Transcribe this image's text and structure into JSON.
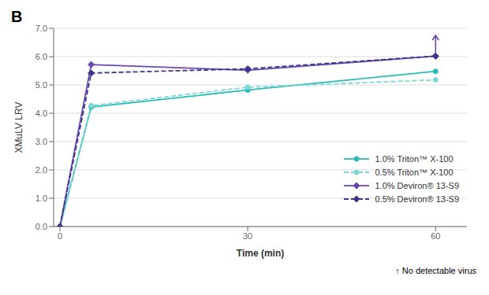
{
  "chart_data": {
    "type": "line",
    "title": "B",
    "x_label": "Time (min)",
    "y_label": "XMuLV LRV",
    "x": [
      0,
      5,
      30,
      60
    ],
    "series": [
      {
        "name": "1.0% Triton™ X-100",
        "color": "#29bbb7",
        "values": [
          0.0,
          4.22,
          4.82,
          5.48
        ],
        "marker": "circle",
        "line_style": "solid"
      },
      {
        "name": "0.5% Triton™ X-100",
        "color": "#7dd8d5",
        "values": [
          0.0,
          4.27,
          4.92,
          5.18
        ],
        "marker": "circle",
        "line_style": "dashed"
      },
      {
        "name": "1.0% Deviron® 13-S9",
        "color": "#6b47b0",
        "values": [
          0.0,
          5.72,
          5.52,
          6.02
        ],
        "marker": "diamond",
        "line_style": "solid"
      },
      {
        "name": "0.5% Deviron® 13-S9",
        "color": "#3d358a",
        "values": [
          0.0,
          5.42,
          5.57,
          6.02
        ],
        "marker": "diamond",
        "line_style": "dashed"
      }
    ],
    "xlim": [
      -1,
      65
    ],
    "xticks": [
      0,
      30,
      60
    ],
    "ylim": [
      0.0,
      7.0
    ],
    "yticks": [
      {
        "value": 0.0,
        "label": "0.0"
      },
      {
        "value": 1.0,
        "label": "1.0"
      },
      {
        "value": 2.0,
        "label": "2.0"
      },
      {
        "value": 3.0,
        "label": "3.0"
      },
      {
        "value": 4.0,
        "label": "4.0"
      },
      {
        "value": 5.0,
        "label": "5.0"
      },
      {
        "value": 6.0,
        "label": "6.0"
      },
      {
        "value": 7.0,
        "label": "7.0"
      }
    ],
    "grid": "y",
    "legend": "lower right",
    "annotations": [
      "↑ No detectable virus"
    ],
    "arrows": [
      {
        "x": 60,
        "y_start": 6.05,
        "y_end": 6.75,
        "color": "#6b47b0"
      }
    ]
  }
}
